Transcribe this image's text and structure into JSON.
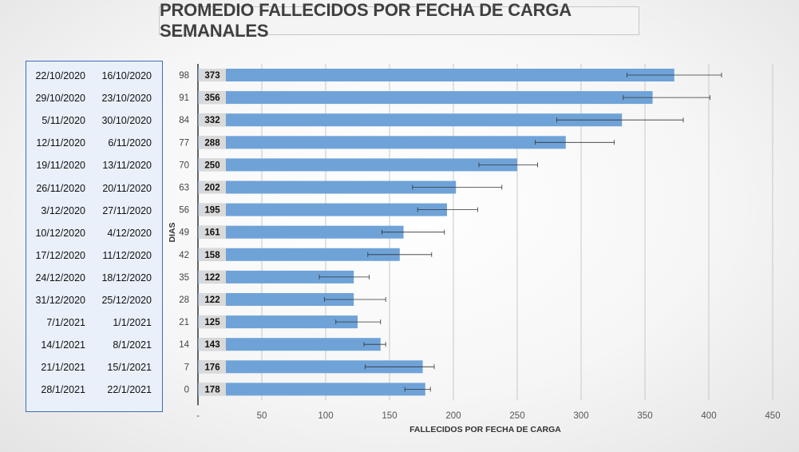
{
  "chart_data": {
    "type": "bar",
    "orientation": "horizontal",
    "title": "PROMEDIO FALLECIDOS POR FECHA DE CARGA SEMANALES",
    "xlabel": "FALLECIDOS POR FECHA DE CARGA",
    "ylabel": "DIAS",
    "xlim": [
      0,
      450
    ],
    "x_ticks": [
      "-",
      "50",
      "100",
      "150",
      "200",
      "250",
      "300",
      "350",
      "400",
      "450"
    ],
    "categories": [
      "98",
      "91",
      "84",
      "77",
      "70",
      "63",
      "56",
      "49",
      "42",
      "35",
      "28",
      "21",
      "14",
      "7",
      "0"
    ],
    "values": [
      373,
      356,
      332,
      288,
      250,
      202,
      195,
      161,
      158,
      122,
      122,
      125,
      143,
      176,
      178
    ],
    "error_low": [
      336,
      333,
      281,
      264,
      220,
      168,
      172,
      144,
      133,
      95,
      99,
      108,
      130,
      131,
      162
    ],
    "error_high": [
      410,
      401,
      380,
      326,
      266,
      238,
      219,
      193,
      183,
      134,
      147,
      143,
      147,
      185,
      182
    ],
    "date_pairs": [
      [
        "22/10/2020",
        "16/10/2020"
      ],
      [
        "29/10/2020",
        "23/10/2020"
      ],
      [
        "5/11/2020",
        "30/10/2020"
      ],
      [
        "12/11/2020",
        "6/11/2020"
      ],
      [
        "19/11/2020",
        "13/11/2020"
      ],
      [
        "26/11/2020",
        "20/11/2020"
      ],
      [
        "3/12/2020",
        "27/11/2020"
      ],
      [
        "10/12/2020",
        "4/12/2020"
      ],
      [
        "17/12/2020",
        "11/12/2020"
      ],
      [
        "24/12/2020",
        "18/12/2020"
      ],
      [
        "31/12/2020",
        "25/12/2020"
      ],
      [
        "7/1/2021",
        "1/1/2021"
      ],
      [
        "14/1/2021",
        "8/1/2021"
      ],
      [
        "21/1/2021",
        "15/1/2021"
      ],
      [
        "28/1/2021",
        "22/1/2021"
      ]
    ],
    "colors": {
      "bar": "#6fa3d8",
      "value_band": "#d9d9d9",
      "error_bar": "#333333",
      "grid": "#c8c8c8"
    },
    "grid": true
  }
}
